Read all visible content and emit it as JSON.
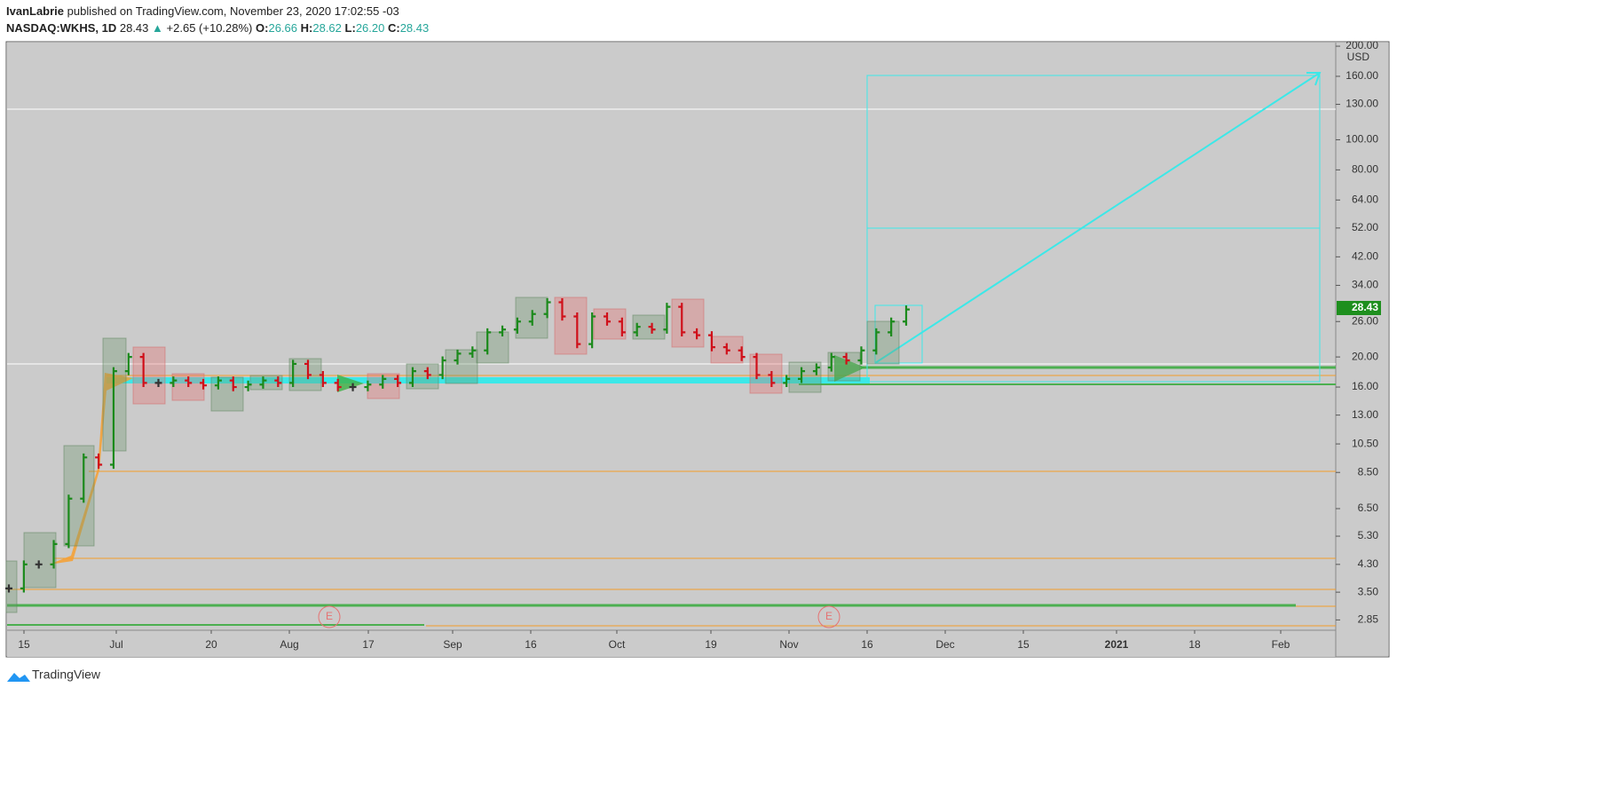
{
  "header": {
    "author": "IvanLabrie",
    "published": "published on TradingView.com, November 23, 2020 17:02:55 -03",
    "symbol": "NASDAQ:WKHS, 1D",
    "last": "28.43",
    "arrow": "▲",
    "change": "+2.65 (+10.28%)",
    "o_label": "O:",
    "o": "26.66",
    "h_label": "H:",
    "h": "28.62",
    "l_label": "L:",
    "l": "26.20",
    "c_label": "C:",
    "c": "28.43"
  },
  "chart_data": {
    "type": "bar",
    "currency": "USD",
    "log_scale": true,
    "values": [
      3.6,
      4.3,
      4.3,
      5.0,
      7.0,
      9.5,
      9.0,
      18,
      20,
      16.5,
      16.5,
      16.8,
      16.5,
      16.2,
      16.8,
      16.0,
      16.3,
      16.8,
      16.5,
      19,
      17.5,
      16.5,
      16.0,
      16.0,
      16.3,
      17.0,
      16.5,
      18.0,
      17.5,
      19.5,
      20.5,
      21.0,
      24,
      24.5,
      26,
      27.5,
      30,
      27,
      22,
      27,
      26,
      24,
      25,
      24.5,
      29,
      24,
      23.5,
      21.5,
      21,
      20,
      17.5,
      16.5,
      17,
      18,
      18.5,
      20,
      19.5,
      21,
      24,
      26,
      28.43
    ],
    "ylim": [
      2.64,
      205.4
    ],
    "yticks": [
      {
        "value": 200,
        "label": "200.00"
      },
      {
        "value": 160,
        "label": "160.00"
      },
      {
        "value": 130,
        "label": "130.00"
      },
      {
        "value": 100,
        "label": "100.00"
      },
      {
        "value": 80,
        "label": "80.00"
      },
      {
        "value": 64,
        "label": "64.00"
      },
      {
        "value": 52,
        "label": "52.00"
      },
      {
        "value": 42,
        "label": "42.00"
      },
      {
        "value": 34,
        "label": "34.00"
      },
      {
        "value": 26,
        "label": "26.00"
      },
      {
        "value": 20,
        "label": "20.00"
      },
      {
        "value": 16,
        "label": "16.00"
      },
      {
        "value": 13,
        "label": "13.00"
      },
      {
        "value": 10.5,
        "label": "10.50"
      },
      {
        "value": 8.5,
        "label": "8.50"
      },
      {
        "value": 6.5,
        "label": "6.50"
      },
      {
        "value": 5.3,
        "label": "5.30"
      },
      {
        "value": 4.3,
        "label": "4.30"
      },
      {
        "value": 3.5,
        "label": "3.50"
      },
      {
        "value": 2.85,
        "label": "2.85"
      }
    ],
    "xlabels": [
      "15",
      "Jul",
      "20",
      "Aug",
      "17",
      "Sep",
      "16",
      "Oct",
      "19",
      "Nov",
      "16",
      "Dec",
      "15",
      "2021",
      "18",
      "Feb"
    ],
    "events": [
      "E",
      "E"
    ]
  },
  "footer": {
    "brand": "TradingView"
  }
}
